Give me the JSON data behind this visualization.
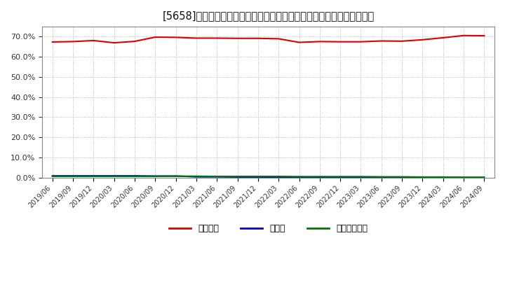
{
  "title": "[5658]　自己資本、のれん、繰延税金資産の総資産に対する比率の推移",
  "x_labels": [
    "2019/06",
    "2019/09",
    "2019/12",
    "2020/03",
    "2020/06",
    "2020/09",
    "2020/12",
    "2021/03",
    "2021/06",
    "2021/09",
    "2021/12",
    "2022/03",
    "2022/06",
    "2022/09",
    "2022/12",
    "2023/03",
    "2023/06",
    "2023/09",
    "2023/12",
    "2024/03",
    "2024/06",
    "2024/09"
  ],
  "equity_ratio": [
    0.674,
    0.676,
    0.681,
    0.67,
    0.677,
    0.698,
    0.697,
    0.693,
    0.693,
    0.692,
    0.692,
    0.69,
    0.672,
    0.676,
    0.675,
    0.675,
    0.679,
    0.678,
    0.685,
    0.695,
    0.706,
    0.705
  ],
  "goodwill_ratio": [
    0.009,
    0.009,
    0.009,
    0.009,
    0.009,
    0.008,
    0.008,
    0.004,
    0.004,
    0.003,
    0.003,
    0.002,
    0.001,
    0.001,
    0.001,
    0.001,
    0.0,
    0.0,
    0.0,
    0.0,
    0.0,
    0.0
  ],
  "deferred_tax_ratio": [
    0.006,
    0.006,
    0.006,
    0.006,
    0.006,
    0.006,
    0.007,
    0.007,
    0.006,
    0.006,
    0.006,
    0.006,
    0.005,
    0.005,
    0.005,
    0.005,
    0.004,
    0.004,
    0.003,
    0.003,
    0.002,
    0.002
  ],
  "equity_color": "#dd0000",
  "goodwill_color": "#0000cc",
  "deferred_tax_color": "#007700",
  "legend_labels": [
    "自己資本",
    "のれん",
    "繰延税金資産"
  ],
  "bg_color": "#ffffff",
  "plot_bg_color": "#ffffff",
  "grid_color": "#aaaaaa",
  "ylim": [
    0.0,
    0.75
  ],
  "yticks": [
    0.0,
    0.1,
    0.2,
    0.3,
    0.4,
    0.5,
    0.6,
    0.7
  ]
}
